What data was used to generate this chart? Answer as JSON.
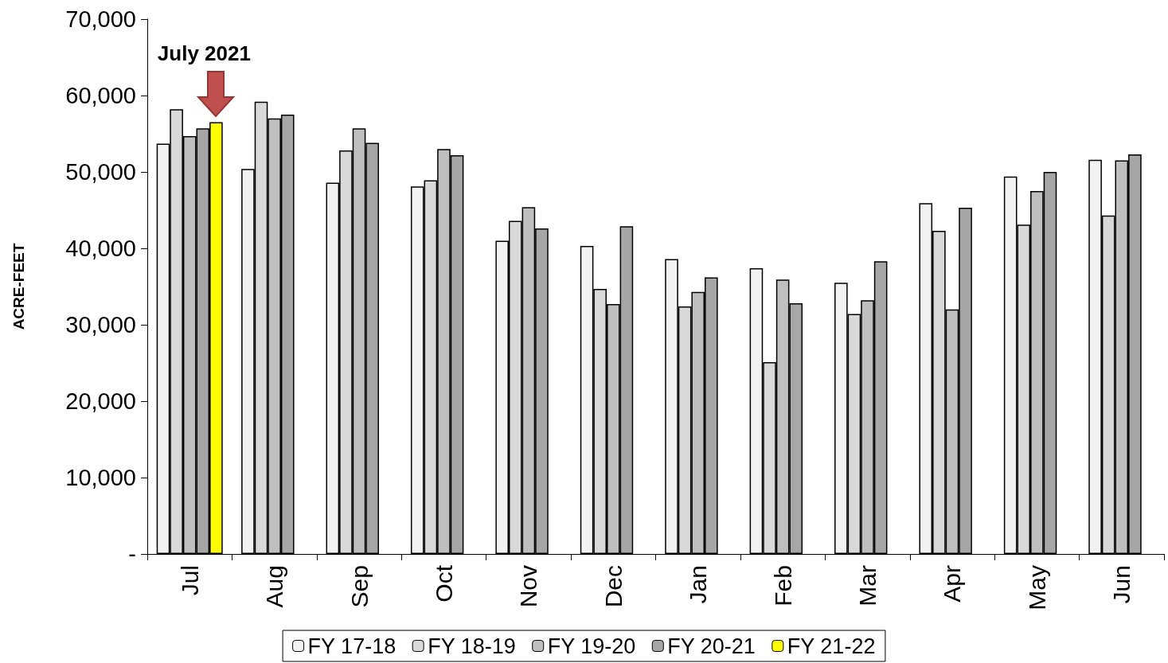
{
  "chart_data": {
    "type": "bar",
    "ylabel": "ACRE-FEET",
    "categories": [
      "Jul",
      "Aug",
      "Sep",
      "Oct",
      "Nov",
      "Dec",
      "Jan",
      "Feb",
      "Mar",
      "Apr",
      "May",
      "Jun"
    ],
    "series": [
      {
        "name": "FY 17-18",
        "color": "#f2f2f2",
        "values": [
          53700,
          50400,
          48600,
          48100,
          41000,
          40300,
          38600,
          37400,
          35500,
          45900,
          49400,
          51600
        ]
      },
      {
        "name": "FY 18-19",
        "color": "#d9d9d9",
        "values": [
          58200,
          59200,
          52800,
          48900,
          43600,
          34700,
          32400,
          25100,
          31400,
          42300,
          43100,
          44300
        ]
      },
      {
        "name": "FY 19-20",
        "color": "#bfbfbf",
        "values": [
          54700,
          57000,
          55700,
          53000,
          45400,
          32700,
          34300,
          35900,
          33200,
          32000,
          47500,
          51500
        ]
      },
      {
        "name": "FY 20-21",
        "color": "#a6a6a6",
        "values": [
          55700,
          57500,
          53800,
          52200,
          42600,
          42900,
          36200,
          32800,
          38300,
          45300,
          50000,
          52300
        ]
      },
      {
        "name": "FY 21-22",
        "color": "#ffff00",
        "values": [
          56500,
          null,
          null,
          null,
          null,
          null,
          null,
          null,
          null,
          null,
          null,
          null
        ]
      }
    ],
    "ylim": [
      0,
      70000
    ],
    "yticks": [
      {
        "value": 0,
        "label": "-"
      },
      {
        "value": 10000,
        "label": "10,000"
      },
      {
        "value": 20000,
        "label": "20,000"
      },
      {
        "value": 30000,
        "label": "30,000"
      },
      {
        "value": 40000,
        "label": "40,000"
      },
      {
        "value": 50000,
        "label": "50,000"
      },
      {
        "value": 60000,
        "label": "60,000"
      },
      {
        "value": 70000,
        "label": "70,000"
      }
    ],
    "annotations": [
      "July 2021"
    ],
    "grid": false,
    "legend": "bottom"
  }
}
